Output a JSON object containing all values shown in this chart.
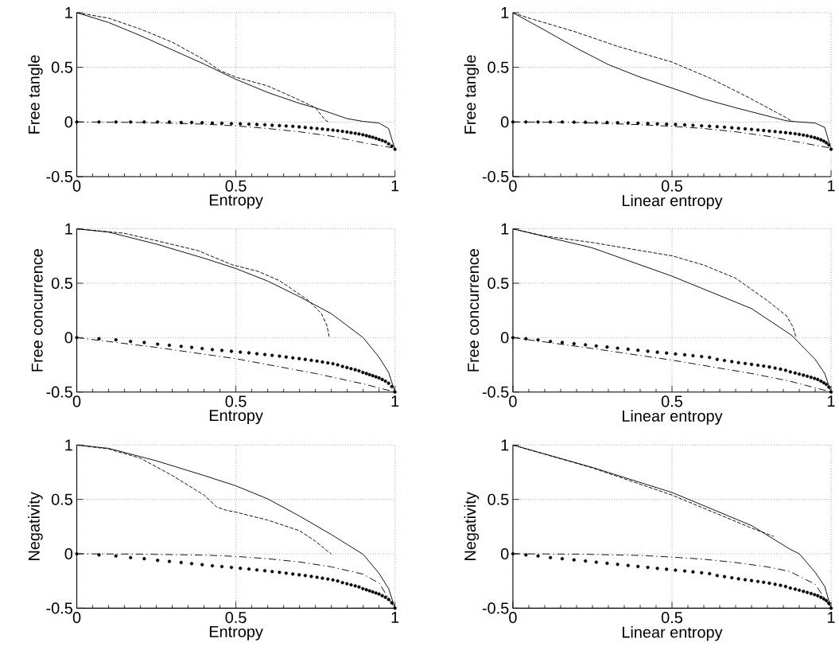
{
  "chart_data": [
    {
      "type": "line",
      "xlabel": "Entropy",
      "ylabel": "Free tangle",
      "xlim": [
        0,
        1
      ],
      "ylim": [
        -0.5,
        1
      ],
      "xticks": [
        0,
        0.5,
        1
      ],
      "yticks": [
        -0.5,
        0,
        0.5,
        1
      ],
      "grid": true,
      "series": [
        {
          "type": "line",
          "color": "#000000",
          "line_style": "solid",
          "marker": "none",
          "x": [
            0,
            0.1,
            0.2,
            0.3,
            0.4,
            0.5,
            0.6,
            0.7,
            0.75,
            0.8,
            0.85,
            0.9,
            0.95,
            0.98,
            1
          ],
          "values": [
            1,
            0.91,
            0.79,
            0.66,
            0.53,
            0.39,
            0.27,
            0.17,
            0.13,
            0.08,
            0.03,
            0.005,
            -0.01,
            -0.06,
            -0.25
          ]
        },
        {
          "type": "line",
          "color": "#000000",
          "line_style": "dashed",
          "marker": "none",
          "x": [
            0,
            0.1,
            0.2,
            0.3,
            0.4,
            0.45,
            0.5,
            0.6,
            0.7,
            0.75,
            0.78,
            0.79
          ],
          "values": [
            1,
            0.95,
            0.85,
            0.73,
            0.57,
            0.47,
            0.41,
            0.33,
            0.2,
            0.13,
            0.02,
            0
          ]
        },
        {
          "type": "scatter",
          "color": "#000000",
          "marker": "circle",
          "x": [
            0,
            0.07,
            0.123,
            0.169,
            0.212,
            0.254,
            0.291,
            0.328,
            0.361,
            0.394,
            0.426,
            0.456,
            0.486,
            0.514,
            0.541,
            0.566,
            0.591,
            0.614,
            0.637,
            0.658,
            0.679,
            0.699,
            0.718,
            0.737,
            0.755,
            0.772,
            0.789,
            0.805,
            0.82,
            0.835,
            0.849,
            0.862,
            0.875,
            0.887,
            0.899,
            0.91,
            0.92,
            0.93,
            0.94,
            0.95,
            0.96,
            0.97,
            0.98,
            0.99,
            1
          ],
          "values": [
            0,
            0,
            0,
            0,
            0,
            0,
            0,
            -0.005,
            -0.005,
            -0.007,
            -0.01,
            -0.012,
            -0.015,
            -0.017,
            -0.02,
            -0.023,
            -0.026,
            -0.03,
            -0.033,
            -0.037,
            -0.04,
            -0.045,
            -0.05,
            -0.055,
            -0.06,
            -0.065,
            -0.07,
            -0.075,
            -0.08,
            -0.086,
            -0.092,
            -0.098,
            -0.104,
            -0.11,
            -0.117,
            -0.125,
            -0.133,
            -0.14,
            -0.15,
            -0.16,
            -0.17,
            -0.18,
            -0.2,
            -0.22,
            -0.25
          ]
        },
        {
          "type": "line",
          "color": "#000000",
          "line_style": "dashdot",
          "marker": "none",
          "x": [
            0,
            0.2,
            0.4,
            0.5,
            0.6,
            0.7,
            0.8,
            0.9,
            1
          ],
          "values": [
            0,
            -0.005,
            -0.02,
            -0.036,
            -0.06,
            -0.09,
            -0.13,
            -0.19,
            -0.24
          ]
        }
      ]
    },
    {
      "type": "line",
      "xlabel": "Linear entropy",
      "ylabel": "Free tangle",
      "xlim": [
        0,
        1
      ],
      "ylim": [
        -0.5,
        1
      ],
      "xticks": [
        0,
        0.5,
        1
      ],
      "yticks": [
        -0.5,
        0,
        0.5,
        1
      ],
      "grid": true,
      "series": [
        {
          "type": "line",
          "color": "#000000",
          "line_style": "solid",
          "marker": "none",
          "x": [
            0,
            0.1,
            0.2,
            0.3,
            0.4,
            0.5,
            0.6,
            0.7,
            0.8,
            0.86,
            0.9,
            0.95,
            0.98,
            1
          ],
          "values": [
            1,
            0.84,
            0.675,
            0.525,
            0.41,
            0.31,
            0.21,
            0.13,
            0.055,
            0.01,
            0,
            -0.01,
            -0.05,
            -0.25
          ]
        },
        {
          "type": "line",
          "color": "#000000",
          "line_style": "dashed",
          "marker": "none",
          "x": [
            0,
            0.054,
            0.195,
            0.328,
            0.5,
            0.618,
            0.742,
            0.858,
            0.88
          ],
          "values": [
            1,
            0.947,
            0.826,
            0.693,
            0.548,
            0.403,
            0.222,
            0.041,
            0
          ]
        },
        {
          "type": "scatter",
          "color": "#000000",
          "marker": "circle",
          "x": [
            0,
            0.041,
            0.079,
            0.118,
            0.155,
            0.192,
            0.228,
            0.262,
            0.296,
            0.329,
            0.362,
            0.393,
            0.424,
            0.454,
            0.483,
            0.511,
            0.54,
            0.566,
            0.593,
            0.618,
            0.642,
            0.665,
            0.688,
            0.709,
            0.73,
            0.75,
            0.77,
            0.788,
            0.806,
            0.824,
            0.841,
            0.857,
            0.872,
            0.887,
            0.9,
            0.913,
            0.925,
            0.937,
            0.948,
            0.958,
            0.968,
            0.977,
            0.985,
            0.993,
            1
          ],
          "values": [
            0,
            0,
            0,
            0,
            0,
            -0.002,
            -0.003,
            -0.004,
            -0.005,
            -0.007,
            -0.009,
            -0.011,
            -0.014,
            -0.017,
            -0.02,
            -0.023,
            -0.027,
            -0.031,
            -0.035,
            -0.039,
            -0.043,
            -0.048,
            -0.053,
            -0.058,
            -0.063,
            -0.068,
            -0.073,
            -0.078,
            -0.083,
            -0.088,
            -0.093,
            -0.098,
            -0.103,
            -0.108,
            -0.114,
            -0.12,
            -0.127,
            -0.135,
            -0.143,
            -0.152,
            -0.163,
            -0.175,
            -0.19,
            -0.21,
            -0.25
          ]
        },
        {
          "type": "line",
          "color": "#000000",
          "line_style": "dashdot",
          "marker": "none",
          "x": [
            0,
            0.2,
            0.4,
            0.5,
            0.6,
            0.7,
            0.8,
            0.87,
            1
          ],
          "values": [
            0,
            -0.005,
            -0.025,
            -0.04,
            -0.06,
            -0.09,
            -0.13,
            -0.17,
            -0.24
          ]
        }
      ]
    },
    {
      "type": "line",
      "xlabel": "Entropy",
      "ylabel": "Free concurrence",
      "xlim": [
        0,
        1
      ],
      "ylim": [
        -0.5,
        1
      ],
      "xticks": [
        0,
        0.5,
        1
      ],
      "yticks": [
        -0.5,
        0,
        0.5,
        1
      ],
      "grid": true,
      "series": [
        {
          "type": "line",
          "color": "#000000",
          "line_style": "solid",
          "marker": "none",
          "x": [
            0,
            0.1,
            0.25,
            0.4,
            0.5,
            0.6,
            0.7,
            0.8,
            0.9,
            0.95,
            0.98,
            1
          ],
          "values": [
            1,
            0.97,
            0.86,
            0.73,
            0.635,
            0.52,
            0.376,
            0.22,
            0,
            -0.18,
            -0.32,
            -0.5
          ]
        },
        {
          "type": "line",
          "color": "#000000",
          "line_style": "dashed",
          "marker": "none",
          "x": [
            0,
            0.148,
            0.239,
            0.38,
            0.488,
            0.57,
            0.637,
            0.728,
            0.769,
            0.786,
            0.793,
            0.795
          ],
          "values": [
            1,
            0.96,
            0.899,
            0.801,
            0.67,
            0.609,
            0.524,
            0.342,
            0.221,
            0.112,
            0.012,
            0
          ]
        },
        {
          "type": "scatter",
          "color": "#000000",
          "marker": "circle",
          "x": [
            0,
            0.07,
            0.123,
            0.169,
            0.212,
            0.254,
            0.291,
            0.328,
            0.361,
            0.394,
            0.426,
            0.456,
            0.486,
            0.514,
            0.541,
            0.566,
            0.591,
            0.614,
            0.637,
            0.658,
            0.679,
            0.699,
            0.718,
            0.737,
            0.755,
            0.772,
            0.789,
            0.805,
            0.82,
            0.835,
            0.849,
            0.862,
            0.875,
            0.887,
            0.899,
            0.91,
            0.92,
            0.93,
            0.94,
            0.95,
            0.96,
            0.97,
            0.98,
            0.99,
            1
          ],
          "values": [
            0,
            -0.01,
            -0.02,
            -0.035,
            -0.045,
            -0.06,
            -0.07,
            -0.08,
            -0.09,
            -0.1,
            -0.11,
            -0.117,
            -0.125,
            -0.133,
            -0.14,
            -0.148,
            -0.155,
            -0.163,
            -0.17,
            -0.178,
            -0.186,
            -0.193,
            -0.2,
            -0.208,
            -0.216,
            -0.224,
            -0.232,
            -0.24,
            -0.25,
            -0.265,
            -0.275,
            -0.285,
            -0.295,
            -0.305,
            -0.32,
            -0.33,
            -0.34,
            -0.35,
            -0.36,
            -0.37,
            -0.385,
            -0.4,
            -0.42,
            -0.45,
            -0.5
          ]
        },
        {
          "type": "line",
          "color": "#000000",
          "line_style": "dashdot",
          "marker": "none",
          "x": [
            0,
            0.25,
            0.5,
            0.75,
            0.9,
            1
          ],
          "values": [
            0,
            -0.09,
            -0.194,
            -0.33,
            -0.425,
            -0.5
          ]
        }
      ]
    },
    {
      "type": "line",
      "xlabel": "Linear entropy",
      "ylabel": "Free concurrence",
      "xlim": [
        0,
        1
      ],
      "ylim": [
        -0.5,
        1
      ],
      "xticks": [
        0,
        0.5,
        1
      ],
      "yticks": [
        -0.5,
        0,
        0.5,
        1
      ],
      "grid": true,
      "series": [
        {
          "type": "line",
          "color": "#000000",
          "line_style": "solid",
          "marker": "none",
          "x": [
            0,
            0.25,
            0.5,
            0.75,
            0.875,
            0.95,
            0.98,
            1
          ],
          "values": [
            1,
            0.825,
            0.565,
            0.267,
            0.024,
            -0.2,
            -0.33,
            -0.5
          ]
        },
        {
          "type": "line",
          "color": "#000000",
          "line_style": "dashed",
          "marker": "none",
          "x": [
            0,
            0.1,
            0.25,
            0.5,
            0.6,
            0.7,
            0.8,
            0.86,
            0.88,
            0.89
          ],
          "values": [
            1,
            0.934,
            0.874,
            0.752,
            0.667,
            0.546,
            0.34,
            0.2,
            0.1,
            0
          ]
        },
        {
          "type": "scatter",
          "color": "#000000",
          "marker": "circle",
          "x": [
            0,
            0.041,
            0.079,
            0.118,
            0.155,
            0.192,
            0.228,
            0.262,
            0.296,
            0.329,
            0.362,
            0.393,
            0.424,
            0.454,
            0.483,
            0.511,
            0.54,
            0.566,
            0.593,
            0.618,
            0.642,
            0.665,
            0.688,
            0.709,
            0.73,
            0.75,
            0.77,
            0.788,
            0.806,
            0.824,
            0.841,
            0.857,
            0.872,
            0.887,
            0.9,
            0.913,
            0.925,
            0.937,
            0.948,
            0.958,
            0.968,
            0.977,
            0.985,
            0.993,
            1
          ],
          "values": [
            0,
            -0.01,
            -0.02,
            -0.035,
            -0.045,
            -0.056,
            -0.066,
            -0.077,
            -0.087,
            -0.097,
            -0.107,
            -0.116,
            -0.125,
            -0.134,
            -0.142,
            -0.15,
            -0.158,
            -0.166,
            -0.174,
            -0.182,
            -0.2,
            -0.21,
            -0.22,
            -0.23,
            -0.238,
            -0.246,
            -0.254,
            -0.262,
            -0.27,
            -0.28,
            -0.29,
            -0.3,
            -0.315,
            -0.325,
            -0.335,
            -0.345,
            -0.355,
            -0.365,
            -0.375,
            -0.385,
            -0.4,
            -0.415,
            -0.43,
            -0.455,
            -0.5
          ]
        },
        {
          "type": "line",
          "color": "#000000",
          "line_style": "dashdot",
          "marker": "none",
          "x": [
            0,
            0.25,
            0.5,
            0.75,
            0.87,
            1
          ],
          "values": [
            0,
            -0.1,
            -0.207,
            -0.33,
            -0.4,
            -0.5
          ]
        }
      ]
    },
    {
      "type": "line",
      "xlabel": "Entropy",
      "ylabel": "Negativity",
      "xlim": [
        0,
        1
      ],
      "ylim": [
        -0.5,
        1
      ],
      "xticks": [
        0,
        0.5,
        1
      ],
      "yticks": [
        -0.5,
        0,
        0.5,
        1
      ],
      "grid": true,
      "series": [
        {
          "type": "line",
          "color": "#000000",
          "line_style": "solid",
          "marker": "none",
          "x": [
            0,
            0.1,
            0.25,
            0.4,
            0.5,
            0.6,
            0.7,
            0.8,
            0.9,
            0.95,
            0.98,
            1
          ],
          "values": [
            1,
            0.97,
            0.855,
            0.72,
            0.625,
            0.505,
            0.347,
            0.177,
            -0.005,
            -0.18,
            -0.32,
            -0.5
          ]
        },
        {
          "type": "line",
          "color": "#000000",
          "line_style": "dashed",
          "marker": "none",
          "x": [
            0,
            0.1,
            0.2,
            0.3,
            0.4,
            0.44,
            0.47,
            0.5,
            0.6,
            0.7,
            0.75,
            0.79,
            0.8
          ],
          "values": [
            1,
            0.964,
            0.879,
            0.72,
            0.54,
            0.43,
            0.4,
            0.383,
            0.31,
            0.213,
            0.116,
            0.02,
            0
          ]
        },
        {
          "type": "scatter",
          "color": "#000000",
          "marker": "circle",
          "x": [
            0,
            0.07,
            0.123,
            0.169,
            0.212,
            0.254,
            0.291,
            0.328,
            0.361,
            0.394,
            0.426,
            0.456,
            0.486,
            0.514,
            0.541,
            0.566,
            0.591,
            0.614,
            0.637,
            0.658,
            0.679,
            0.699,
            0.718,
            0.737,
            0.755,
            0.772,
            0.789,
            0.805,
            0.82,
            0.835,
            0.849,
            0.862,
            0.875,
            0.887,
            0.899,
            0.91,
            0.92,
            0.93,
            0.94,
            0.95,
            0.96,
            0.97,
            0.98,
            0.99,
            1
          ],
          "values": [
            0,
            -0.01,
            -0.02,
            -0.035,
            -0.045,
            -0.06,
            -0.07,
            -0.08,
            -0.09,
            -0.1,
            -0.11,
            -0.117,
            -0.125,
            -0.133,
            -0.14,
            -0.148,
            -0.155,
            -0.163,
            -0.17,
            -0.178,
            -0.186,
            -0.193,
            -0.2,
            -0.208,
            -0.216,
            -0.224,
            -0.232,
            -0.24,
            -0.25,
            -0.265,
            -0.275,
            -0.285,
            -0.295,
            -0.305,
            -0.32,
            -0.33,
            -0.34,
            -0.35,
            -0.36,
            -0.37,
            -0.385,
            -0.4,
            -0.42,
            -0.45,
            -0.5
          ]
        },
        {
          "type": "line",
          "color": "#000000",
          "line_style": "dashdot",
          "marker": "none",
          "x": [
            0,
            0.2,
            0.4,
            0.5,
            0.6,
            0.7,
            0.8,
            0.9,
            0.95,
            1
          ],
          "values": [
            0,
            -0.003,
            -0.012,
            -0.024,
            -0.045,
            -0.075,
            -0.12,
            -0.187,
            -0.27,
            -0.5
          ]
        }
      ]
    },
    {
      "type": "line",
      "xlabel": "Linear entropy",
      "ylabel": "Negativity",
      "xlim": [
        0,
        1
      ],
      "ylim": [
        -0.5,
        1
      ],
      "xticks": [
        0,
        0.5,
        1
      ],
      "yticks": [
        -0.5,
        0,
        0.5,
        1
      ],
      "grid": true,
      "series": [
        {
          "type": "line",
          "color": "#000000",
          "line_style": "solid",
          "marker": "none",
          "x": [
            0,
            0.25,
            0.5,
            0.75,
            0.87,
            0.9,
            0.95,
            0.98,
            1
          ],
          "values": [
            1,
            0.794,
            0.564,
            0.26,
            0.044,
            0,
            -0.17,
            -0.3,
            -0.5
          ]
        },
        {
          "type": "line",
          "color": "#000000",
          "line_style": "dashed",
          "marker": "none",
          "x": [
            0,
            0.25,
            0.5,
            0.75,
            0.82
          ],
          "values": [
            1,
            0.79,
            0.54,
            0.237,
            0.16
          ]
        },
        {
          "type": "scatter",
          "color": "#000000",
          "marker": "circle",
          "x": [
            0,
            0.041,
            0.079,
            0.118,
            0.155,
            0.192,
            0.228,
            0.262,
            0.296,
            0.329,
            0.362,
            0.393,
            0.424,
            0.454,
            0.483,
            0.511,
            0.54,
            0.566,
            0.593,
            0.618,
            0.642,
            0.665,
            0.688,
            0.709,
            0.73,
            0.75,
            0.77,
            0.788,
            0.806,
            0.824,
            0.841,
            0.857,
            0.872,
            0.887,
            0.9,
            0.913,
            0.925,
            0.937,
            0.948,
            0.958,
            0.968,
            0.977,
            0.985,
            0.993,
            1
          ],
          "values": [
            0,
            -0.01,
            -0.02,
            -0.035,
            -0.045,
            -0.056,
            -0.066,
            -0.077,
            -0.087,
            -0.097,
            -0.107,
            -0.116,
            -0.125,
            -0.134,
            -0.142,
            -0.15,
            -0.158,
            -0.166,
            -0.174,
            -0.182,
            -0.2,
            -0.21,
            -0.22,
            -0.23,
            -0.238,
            -0.246,
            -0.254,
            -0.262,
            -0.27,
            -0.28,
            -0.29,
            -0.3,
            -0.315,
            -0.325,
            -0.335,
            -0.345,
            -0.355,
            -0.365,
            -0.375,
            -0.385,
            -0.4,
            -0.415,
            -0.43,
            -0.455,
            -0.5
          ]
        },
        {
          "type": "line",
          "color": "#000000",
          "line_style": "dashdot",
          "marker": "none",
          "x": [
            0,
            0.2,
            0.4,
            0.5,
            0.6,
            0.7,
            0.8,
            0.87,
            0.95,
            1
          ],
          "values": [
            0,
            -0.003,
            -0.015,
            -0.03,
            -0.05,
            -0.08,
            -0.12,
            -0.162,
            -0.28,
            -0.5
          ]
        }
      ]
    }
  ]
}
